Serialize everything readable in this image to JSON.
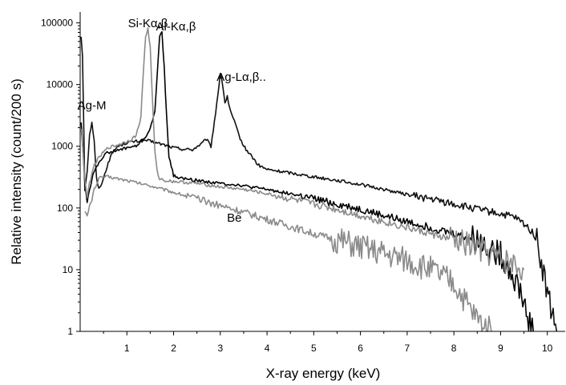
{
  "chart_data": {
    "type": "line",
    "title": "",
    "xlabel": "X-ray energy (keV)",
    "ylabel": "Relative intensity (count/200 s)",
    "xlim": [
      0,
      10.4
    ],
    "ylim": [
      1,
      150000
    ],
    "yscale": "log",
    "grid": false,
    "xticks": [
      1,
      2,
      3,
      4,
      5,
      6,
      7,
      8,
      9,
      10
    ],
    "xtick_labels": [
      "1",
      "2",
      "3",
      "4",
      "5",
      "6",
      "7",
      "8",
      "9",
      "10"
    ],
    "yticks": [
      1,
      10,
      100,
      1000,
      10000,
      100000
    ],
    "ytick_labels": [
      "1",
      "10",
      "100",
      "1000",
      "10000",
      "100000"
    ],
    "annotations": [
      {
        "text": "Si-Kα,β",
        "x": 1.45,
        "y": 85000
      },
      {
        "text": "Al-Kα,β",
        "x": 2.05,
        "y": 75000
      },
      {
        "text": "Ag-Lα,β..",
        "x": 3.45,
        "y": 11500
      },
      {
        "text": "Ag-M",
        "x": 0.25,
        "y": 4000
      },
      {
        "text": "Be",
        "x": 3.3,
        "y": 60
      }
    ],
    "series": [
      {
        "color": "#111111",
        "x": [
          0.02,
          0.05,
          0.08,
          0.1,
          0.15,
          0.2,
          0.25,
          0.3,
          0.35,
          0.4,
          0.5,
          0.6,
          0.7,
          0.8,
          1.0,
          1.2,
          1.4,
          1.6,
          1.8,
          2.0,
          2.2,
          2.4,
          2.6,
          2.7,
          2.8,
          2.9,
          3.0,
          3.05,
          3.1,
          3.15,
          3.2,
          3.3,
          3.4,
          3.5,
          3.6,
          3.7,
          3.8,
          4.0,
          4.5,
          5.0,
          5.5,
          6.0,
          6.5,
          7.0,
          7.5,
          8.0,
          8.5,
          9.0,
          9.3,
          9.5,
          9.7,
          9.8,
          9.9,
          10.0,
          10.1,
          10.2
        ],
        "y": [
          60000,
          30000,
          1500,
          200,
          400,
          1500,
          2500,
          1200,
          300,
          200,
          300,
          550,
          800,
          1000,
          1150,
          1200,
          1250,
          1150,
          1050,
          950,
          900,
          880,
          1100,
          1300,
          1000,
          3500,
          15000,
          10000,
          5000,
          6500,
          4000,
          2500,
          1500,
          1000,
          800,
          650,
          500,
          420,
          370,
          320,
          280,
          240,
          200,
          165,
          140,
          115,
          95,
          80,
          70,
          55,
          40,
          25,
          10,
          4,
          2,
          1
        ]
      },
      {
        "color": "#000000",
        "x": [
          0.02,
          0.05,
          0.1,
          0.15,
          0.2,
          0.3,
          0.4,
          0.5,
          0.6,
          0.8,
          1.0,
          1.2,
          1.4,
          1.5,
          1.6,
          1.65,
          1.7,
          1.75,
          1.8,
          1.85,
          1.9,
          2.0,
          2.2,
          2.5,
          3.0,
          3.3,
          3.5,
          3.6,
          4.0,
          4.5,
          5.0,
          5.5,
          6.0,
          6.5,
          7.0,
          7.5,
          8.0,
          8.5,
          9.0,
          9.2,
          9.4,
          9.5,
          9.6,
          9.7
        ],
        "y": [
          2500,
          1200,
          250,
          130,
          200,
          400,
          550,
          700,
          800,
          850,
          950,
          1000,
          1400,
          2000,
          3500,
          15000,
          60000,
          70000,
          20000,
          3000,
          700,
          330,
          300,
          280,
          250,
          240,
          230,
          220,
          200,
          170,
          140,
          115,
          95,
          75,
          60,
          48,
          38,
          30,
          18,
          10,
          5,
          3,
          1.5,
          1
        ]
      },
      {
        "color": "#8a8a8a",
        "x": [
          0.02,
          0.05,
          0.1,
          0.15,
          0.2,
          0.3,
          0.4,
          0.5,
          0.6,
          0.8,
          1.0,
          1.1,
          1.2,
          1.3,
          1.35,
          1.4,
          1.45,
          1.5,
          1.55,
          1.6,
          1.65,
          1.7,
          1.8,
          2.0,
          2.5,
          3.0,
          3.5,
          4.0,
          4.5,
          5.0,
          5.5,
          6.0,
          6.5,
          7.0,
          7.5,
          8.0,
          8.5,
          9.0,
          9.5
        ],
        "y": [
          2000,
          1100,
          300,
          150,
          250,
          500,
          650,
          800,
          950,
          1050,
          1200,
          1300,
          1500,
          3000,
          15000,
          60000,
          80000,
          40000,
          5000,
          800,
          380,
          300,
          280,
          270,
          250,
          220,
          200,
          170,
          140,
          115,
          95,
          75,
          60,
          48,
          38,
          30,
          22,
          15,
          10
        ]
      },
      {
        "color": "#8a8a8a",
        "x": [
          0.1,
          0.15,
          0.2,
          0.3,
          0.4,
          0.5,
          0.6,
          0.8,
          1.0,
          1.5,
          2.0,
          2.5,
          3.0,
          3.5,
          4.0,
          4.5,
          5.0,
          5.5,
          6.0,
          6.5,
          7.0,
          7.5,
          8.0,
          8.2,
          8.4,
          8.6,
          8.8
        ],
        "y": [
          100,
          70,
          100,
          200,
          300,
          320,
          320,
          300,
          280,
          230,
          180,
          140,
          110,
          85,
          65,
          50,
          38,
          30,
          23,
          18,
          14,
          10,
          6,
          3.5,
          2,
          1.3,
          1
        ]
      }
    ]
  }
}
